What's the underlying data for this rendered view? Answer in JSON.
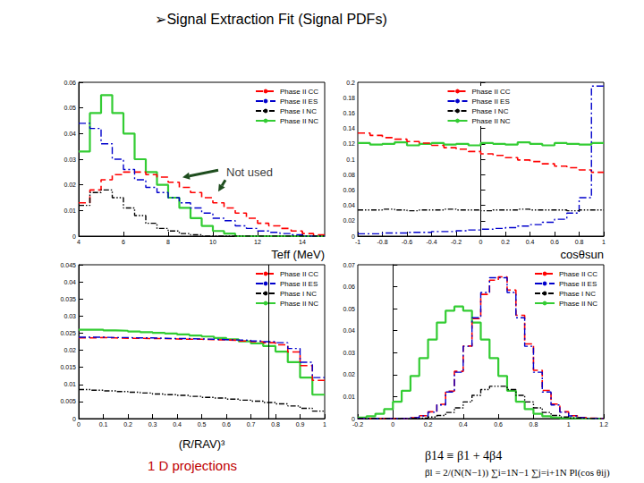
{
  "title": "➢Signal Extraction Fit (Signal PDFs)",
  "footer": "1 D projections",
  "formulas": [
    "β14 ≡ β1 + 4β4",
    "βl = 2/(N(N−1)) ∑i=1N−1 ∑j=i+1N Pl(cos θij)"
  ],
  "chart_data": [
    {
      "type": "histogram",
      "x_label": "Teff (MeV)",
      "grid": false,
      "legend": "upper right",
      "bins": [
        4,
        4.5,
        5,
        5.5,
        6,
        6.5,
        7,
        7.5,
        8,
        8.5,
        9,
        9.5,
        10,
        10.5,
        11,
        11.5,
        12,
        12.5,
        13,
        13.5,
        14,
        14.5,
        15
      ],
      "xlim": [
        4,
        15
      ],
      "xticks": [
        4,
        6,
        8,
        10,
        12,
        14
      ],
      "ylim": [
        0,
        0.06
      ],
      "yticks": [
        0,
        0.01,
        0.02,
        0.03,
        0.04,
        0.05,
        0.06
      ],
      "annotations": [
        {
          "text": "Not used",
          "x": 10.4,
          "y": 0.025
        }
      ],
      "series": [
        {
          "name": "Phase II CC",
          "color": "#ff0000",
          "line_style": "dashed",
          "values": [
            0.013,
            0.018,
            0.022,
            0.024,
            0.025,
            0.025,
            0.024,
            0.023,
            0.021,
            0.019,
            0.017,
            0.015,
            0.013,
            0.011,
            0.009,
            0.007,
            0.005,
            0.004,
            0.003,
            0.002,
            0.001,
            0.0005
          ]
        },
        {
          "name": "Phase II ES",
          "color": "#0000cc",
          "line_style": "dashdot",
          "values": [
            0.044,
            0.042,
            0.036,
            0.03,
            0.026,
            0.022,
            0.019,
            0.017,
            0.015,
            0.013,
            0.011,
            0.009,
            0.007,
            0.006,
            0.004,
            0.003,
            0.002,
            0.0015,
            0.001,
            0.0005,
            0,
            0
          ]
        },
        {
          "name": "Phase I NC",
          "color": "#000000",
          "line_style": "dashdotdot",
          "values": [
            0.012,
            0.017,
            0.018,
            0.015,
            0.011,
            0.008,
            0.005,
            0.003,
            0.002,
            0.001,
            0.0005,
            0,
            0,
            0,
            0,
            0,
            0,
            0,
            0,
            0,
            0,
            0
          ]
        },
        {
          "name": "Phase II NC",
          "color": "#33cc33",
          "line_style": "solid",
          "values": [
            0.033,
            0.048,
            0.055,
            0.048,
            0.04,
            0.03,
            0.025,
            0.02,
            0.015,
            0.011,
            0.007,
            0.004,
            0.002,
            0.001,
            0,
            0,
            0,
            0,
            0,
            0,
            0,
            0
          ]
        }
      ]
    },
    {
      "type": "histogram",
      "x_label": "cosθsun",
      "grid": false,
      "legend": "upper center",
      "bins": [
        -1,
        -0.9,
        -0.8,
        -0.7,
        -0.6,
        -0.5,
        -0.4,
        -0.3,
        -0.2,
        -0.1,
        0,
        0.1,
        0.2,
        0.3,
        0.4,
        0.5,
        0.6,
        0.7,
        0.8,
        0.9,
        1
      ],
      "xlim": [
        -1,
        1
      ],
      "xticks": [
        -1,
        -0.8,
        -0.6,
        -0.4,
        -0.2,
        0,
        0.2,
        0.4,
        0.6,
        0.8,
        1
      ],
      "ylim": [
        0,
        0.2
      ],
      "yticks": [
        0,
        0.02,
        0.04,
        0.06,
        0.08,
        0.1,
        0.12,
        0.14,
        0.16,
        0.18,
        0.2
      ],
      "series": [
        {
          "name": "Phase II CC",
          "color": "#ff0000",
          "line_style": "dashed",
          "values": [
            0.134,
            0.131,
            0.128,
            0.126,
            0.123,
            0.121,
            0.118,
            0.115,
            0.113,
            0.11,
            0.107,
            0.105,
            0.102,
            0.099,
            0.097,
            0.094,
            0.091,
            0.089,
            0.086,
            0.083
          ]
        },
        {
          "name": "Phase II ES",
          "color": "#0000cc",
          "line_style": "dashdot",
          "values": [
            0.003,
            0.003,
            0.004,
            0.004,
            0.005,
            0.005,
            0.006,
            0.006,
            0.007,
            0.008,
            0.009,
            0.01,
            0.011,
            0.013,
            0.015,
            0.018,
            0.022,
            0.03,
            0.05,
            0.195
          ]
        },
        {
          "name": "Phase I NC",
          "color": "#000000",
          "line_style": "dashdotdot",
          "values": [
            0.034,
            0.034,
            0.035,
            0.034,
            0.033,
            0.034,
            0.034,
            0.035,
            0.034,
            0.034,
            0.033,
            0.034,
            0.034,
            0.035,
            0.034,
            0.034,
            0.034,
            0.033,
            0.034,
            0.034
          ]
        },
        {
          "name": "Phase II NC",
          "color": "#33cc33",
          "line_style": "solid",
          "values": [
            0.121,
            0.119,
            0.12,
            0.122,
            0.118,
            0.12,
            0.121,
            0.119,
            0.12,
            0.118,
            0.121,
            0.12,
            0.119,
            0.122,
            0.12,
            0.118,
            0.121,
            0.12,
            0.119,
            0.121
          ]
        }
      ]
    },
    {
      "type": "histogram",
      "x_label": "(R/RAV)³",
      "grid": false,
      "legend": "upper right",
      "bins": [
        0,
        0.05,
        0.1,
        0.15,
        0.2,
        0.25,
        0.3,
        0.35,
        0.4,
        0.45,
        0.5,
        0.55,
        0.6,
        0.65,
        0.7,
        0.75,
        0.8,
        0.85,
        0.9,
        0.95,
        1
      ],
      "xlim": [
        0,
        1
      ],
      "xticks": [
        0,
        0.1,
        0.2,
        0.3,
        0.4,
        0.5,
        0.6,
        0.7,
        0.8,
        0.9,
        1
      ],
      "ylim": [
        0,
        0.045
      ],
      "yticks": [
        0,
        0.005,
        0.01,
        0.015,
        0.02,
        0.025,
        0.03,
        0.035,
        0.04,
        0.045
      ],
      "cut_line": 0.77,
      "series": [
        {
          "name": "Phase II CC",
          "color": "#ff0000",
          "line_style": "dashed",
          "values": [
            0.0236,
            0.0237,
            0.0236,
            0.0235,
            0.0235,
            0.0234,
            0.0234,
            0.0233,
            0.0232,
            0.0232,
            0.0231,
            0.023,
            0.0229,
            0.0227,
            0.0225,
            0.0222,
            0.0216,
            0.0195,
            0.0155,
            0.0112
          ]
        },
        {
          "name": "Phase II ES",
          "color": "#0000cc",
          "line_style": "dashdot",
          "values": [
            0.0238,
            0.0238,
            0.0237,
            0.0237,
            0.0236,
            0.0236,
            0.0235,
            0.0234,
            0.0234,
            0.0233,
            0.0232,
            0.0231,
            0.023,
            0.0229,
            0.0227,
            0.0225,
            0.0222,
            0.0205,
            0.0165,
            0.012
          ]
        },
        {
          "name": "Phase I NC",
          "color": "#000000",
          "line_style": "dashdotdot",
          "values": [
            0.0085,
            0.0083,
            0.0081,
            0.0079,
            0.0077,
            0.0075,
            0.0072,
            0.007,
            0.0068,
            0.0065,
            0.0062,
            0.006,
            0.0057,
            0.0054,
            0.0051,
            0.0047,
            0.0043,
            0.0037,
            0.003,
            0.0022
          ]
        },
        {
          "name": "Phase II NC",
          "color": "#33cc33",
          "line_style": "solid",
          "values": [
            0.026,
            0.026,
            0.0258,
            0.0257,
            0.0255,
            0.0253,
            0.0251,
            0.0249,
            0.0246,
            0.0243,
            0.024,
            0.0236,
            0.0232,
            0.0226,
            0.022,
            0.0212,
            0.0196,
            0.0165,
            0.012,
            0.007
          ]
        }
      ]
    },
    {
      "type": "histogram",
      "grid": false,
      "legend": "upper right",
      "bins": [
        -0.2,
        -0.15,
        -0.1,
        -0.05,
        0,
        0.05,
        0.1,
        0.15,
        0.2,
        0.25,
        0.3,
        0.35,
        0.4,
        0.45,
        0.5,
        0.55,
        0.6,
        0.65,
        0.7,
        0.75,
        0.8,
        0.85,
        0.9,
        0.95,
        1,
        1.05,
        1.1,
        1.15,
        1.2
      ],
      "xlim": [
        -0.2,
        1.2
      ],
      "xticks": [
        -0.2,
        0,
        0.2,
        0.4,
        0.6,
        0.8,
        1,
        1.2
      ],
      "ylim": [
        0,
        0.07
      ],
      "yticks": [
        0,
        0.01,
        0.02,
        0.03,
        0.04,
        0.05,
        0.06,
        0.07
      ],
      "series": [
        {
          "name": "Phase II CC",
          "color": "#ff0000",
          "line_style": "dashed",
          "values": [
            0,
            0,
            0,
            0,
            0,
            0.0001,
            0.0004,
            0.0013,
            0.0031,
            0.0065,
            0.0125,
            0.0215,
            0.033,
            0.0455,
            0.0565,
            0.063,
            0.0645,
            0.0585,
            0.047,
            0.034,
            0.022,
            0.0128,
            0.0066,
            0.0031,
            0.0013,
            0.0005,
            0.0002,
            0
          ]
        },
        {
          "name": "Phase II ES",
          "color": "#0000cc",
          "line_style": "dashdot",
          "values": [
            0,
            0,
            0,
            0,
            0,
            0.0001,
            0.0004,
            0.0012,
            0.0029,
            0.0062,
            0.0121,
            0.0211,
            0.0329,
            0.0459,
            0.0574,
            0.0641,
            0.0641,
            0.0574,
            0.0459,
            0.0329,
            0.0211,
            0.0121,
            0.0062,
            0.0029,
            0.0012,
            0.0004,
            0.0001,
            0
          ]
        },
        {
          "name": "Phase I NC",
          "color": "#000000",
          "line_style": "dashdotdot",
          "values": [
            0,
            0,
            0,
            0,
            0,
            0,
            0.0001,
            0.0003,
            0.0007,
            0.0014,
            0.0028,
            0.0049,
            0.0076,
            0.0106,
            0.0132,
            0.0147,
            0.0147,
            0.0132,
            0.0106,
            0.0076,
            0.0049,
            0.0028,
            0.0014,
            0.0007,
            0.0003,
            0.0001,
            0,
            0
          ]
        },
        {
          "name": "Phase II NC",
          "color": "#33cc33",
          "line_style": "solid",
          "values": [
            0.0005,
            0.0011,
            0.0022,
            0.0043,
            0.0077,
            0.0127,
            0.0194,
            0.0275,
            0.036,
            0.0437,
            0.0491,
            0.051,
            0.0491,
            0.0437,
            0.036,
            0.0275,
            0.0194,
            0.0127,
            0.0077,
            0.0043,
            0.0022,
            0.0011,
            0.0005,
            0.0002,
            0.0001,
            0,
            0,
            0
          ]
        }
      ]
    }
  ]
}
